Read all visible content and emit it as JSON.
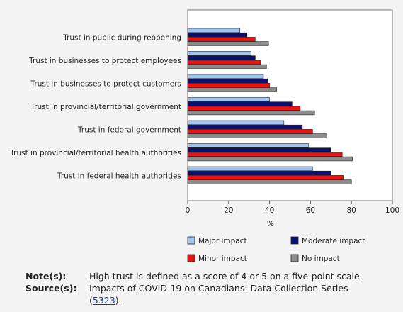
{
  "chart_data": {
    "type": "bar",
    "orientation": "horizontal",
    "categories": [
      "Trust in public during reopening",
      "Trust in businesses to protect employees",
      "Trust in businesses to protect customers",
      "Trust in provincial/territorial government",
      "Trust in federal government",
      "Trust in provincial/territorial health authorities",
      "Trust in federal health authorities"
    ],
    "series": [
      {
        "name": "Major impact",
        "color": "#9fc5f0",
        "values": [
          25.5,
          31,
          37,
          40,
          47,
          59,
          61
        ]
      },
      {
        "name": "Moderate impact",
        "color": "#0b1070",
        "values": [
          29,
          33,
          39,
          51,
          56,
          70,
          70
        ]
      },
      {
        "name": "Minor impact",
        "color": "#ee1111",
        "values": [
          33,
          35.5,
          40,
          55,
          61,
          75.5,
          76
        ]
      },
      {
        "name": "No impact",
        "color": "#8c8c8c",
        "values": [
          39.5,
          38.5,
          43.5,
          62,
          68,
          80.5,
          80
        ]
      }
    ],
    "xlabel": "%",
    "xlim": [
      0,
      100
    ],
    "xticks": [
      "0",
      "20",
      "40",
      "60",
      "80",
      "100"
    ],
    "grid": false,
    "legend_position": "bottom"
  },
  "notes": {
    "note_key": "Note(s):",
    "note_text": "High trust is defined as a score of 4 or 5 on a five-point scale.",
    "source_key": "Source(s):",
    "source_text": "Impacts of COVID-19 on Canadians: Data Collection Series",
    "source_open": "(",
    "source_link": "5323",
    "source_close": ")."
  }
}
